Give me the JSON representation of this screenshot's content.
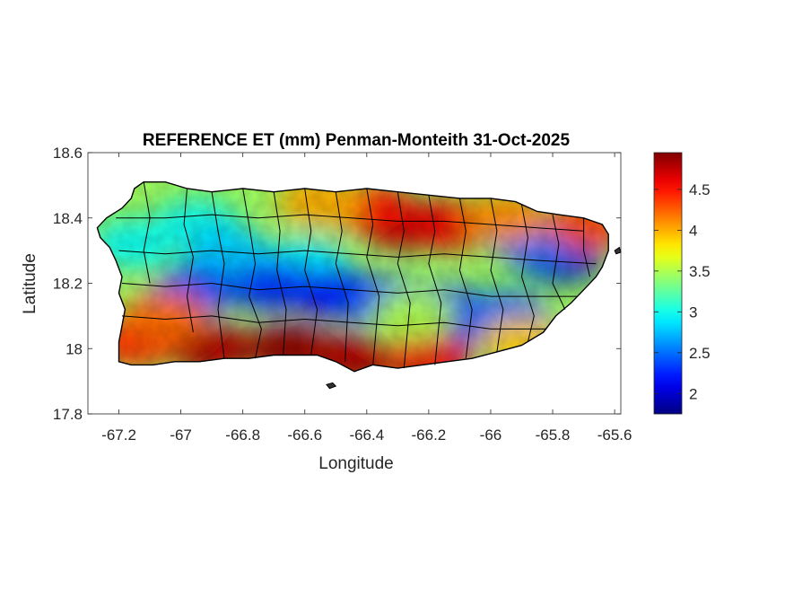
{
  "chart_data": {
    "type": "heatmap",
    "title": "REFERENCE ET (mm) Penman-Monteith 31-Oct-2025",
    "xlabel": "Longitude",
    "ylabel": "Latitude",
    "xlim": [
      -67.3,
      -65.58
    ],
    "ylim": [
      17.8,
      18.6
    ],
    "xticks": [
      -67.2,
      -67,
      -66.8,
      -66.6,
      -66.4,
      -66.2,
      -66,
      -65.8,
      -65.6
    ],
    "xtick_labels": [
      "-67.2",
      "-67",
      "-66.8",
      "-66.6",
      "-66.4",
      "-66.2",
      "-66",
      "-65.8",
      "-65.6"
    ],
    "yticks": [
      17.8,
      18,
      18.2,
      18.4,
      18.6
    ],
    "ytick_labels": [
      "17.8",
      "18",
      "18.2",
      "18.4",
      "18.6"
    ],
    "colormap": "jet",
    "clim": [
      1.75,
      4.95
    ],
    "colorbar_ticks": [
      2,
      2.5,
      3,
      3.5,
      4,
      4.5
    ],
    "colorbar_tick_labels": [
      "2",
      "2.5",
      "3",
      "3.5",
      "4",
      "4.5"
    ],
    "grid": false,
    "region": "Puerto Rico (municipality boundaries)",
    "field_hotspots": [
      {
        "lon": -67.15,
        "lat": 18.32,
        "value": 3.0
      },
      {
        "lon": -66.95,
        "lat": 18.38,
        "value": 3.0
      },
      {
        "lon": -66.85,
        "lat": 18.3,
        "value": 2.8
      },
      {
        "lon": -66.6,
        "lat": 18.26,
        "value": 2.9
      },
      {
        "lon": -66.95,
        "lat": 18.18,
        "value": 2.4
      },
      {
        "lon": -66.7,
        "lat": 18.19,
        "value": 2.3
      },
      {
        "lon": -66.5,
        "lat": 18.17,
        "value": 2.2
      },
      {
        "lon": -66.35,
        "lat": 18.14,
        "value": 2.4
      },
      {
        "lon": -66.15,
        "lat": 18.12,
        "value": 2.4
      },
      {
        "lon": -66.05,
        "lat": 18.08,
        "value": 2.1
      },
      {
        "lon": -65.95,
        "lat": 18.1,
        "value": 2.5
      },
      {
        "lon": -65.78,
        "lat": 18.28,
        "value": 2.0
      },
      {
        "lon": -65.85,
        "lat": 18.32,
        "value": 2.5
      },
      {
        "lon": -66.28,
        "lat": 18.38,
        "value": 4.8
      },
      {
        "lon": -66.12,
        "lat": 18.38,
        "value": 4.6
      },
      {
        "lon": -66.4,
        "lat": 18.43,
        "value": 4.5
      },
      {
        "lon": -65.68,
        "lat": 18.38,
        "value": 4.3
      },
      {
        "lon": -65.95,
        "lat": 18.4,
        "value": 4.1
      },
      {
        "lon": -66.65,
        "lat": 18.0,
        "value": 4.9
      },
      {
        "lon": -66.45,
        "lat": 17.97,
        "value": 4.8
      },
      {
        "lon": -66.2,
        "lat": 17.97,
        "value": 4.6
      },
      {
        "lon": -66.9,
        "lat": 18.0,
        "value": 4.8
      },
      {
        "lon": -67.15,
        "lat": 18.02,
        "value": 4.4
      },
      {
        "lon": -67.05,
        "lat": 18.1,
        "value": 4.2
      },
      {
        "lon": -66.55,
        "lat": 18.45,
        "value": 4.0
      },
      {
        "lon": -65.9,
        "lat": 18.02,
        "value": 3.9
      },
      {
        "lon": -66.25,
        "lat": 18.1,
        "value": 3.5
      }
    ]
  },
  "colors": {
    "coast": "#000000",
    "axes": "#262626"
  }
}
